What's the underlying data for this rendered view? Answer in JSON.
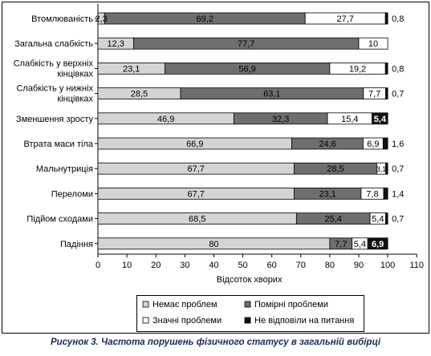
{
  "caption": "Рисунок 3. Частота порушень фізичного статусу в загальній вибірці",
  "colors": {
    "none": "#d4d4d4",
    "moderate": "#6e6e6e",
    "significant": "#ffffff",
    "no_answer": "#111111"
  },
  "chart_data": {
    "type": "bar",
    "orientation": "horizontal",
    "stacked": true,
    "xlabel": "Відсоток хворих",
    "xlim": [
      0,
      110
    ],
    "xticks": [
      0,
      10,
      20,
      30,
      40,
      50,
      60,
      70,
      80,
      90,
      100,
      110
    ],
    "grid": false,
    "legend_position": "bottom",
    "categories": [
      "Втомлюваність",
      "Загальна слабкість",
      "Слабкість у верхніх кінцівках",
      "Слабкість у нижніх кінцівках",
      "Зменшення зросту",
      "Втрата маси тіла",
      "Мальнутриція",
      "Переломи",
      "Підйом сходами",
      "Падіння"
    ],
    "category_lines": [
      [
        "Втомлюваність"
      ],
      [
        "Загальна слабкість"
      ],
      [
        "Слабкість у верхніх",
        "кінцівках"
      ],
      [
        "Слабкість у нижніх",
        "кінцівках"
      ],
      [
        "Зменшення зросту"
      ],
      [
        "Втрата маси тіла"
      ],
      [
        "Мальнутриція"
      ],
      [
        "Переломи"
      ],
      [
        "Підйом сходами"
      ],
      [
        "Падіння"
      ]
    ],
    "series": [
      {
        "name": "Немає проблем",
        "key": "none",
        "values": [
          2.3,
          12.3,
          23.1,
          28.5,
          46.9,
          66.9,
          67.7,
          67.7,
          68.5,
          80
        ],
        "labels": [
          "2,3",
          "12,3",
          "23,1",
          "28,5",
          "46,9",
          "66,9",
          "67,7",
          "67,7",
          "68,5",
          "80"
        ]
      },
      {
        "name": "Помірні проблеми",
        "key": "moderate",
        "values": [
          69.2,
          77.7,
          56.9,
          63.1,
          32.3,
          24.6,
          28.5,
          23.1,
          25.4,
          7.7
        ],
        "labels": [
          "69,2",
          "77,7",
          "56,9",
          "63,1",
          "32,3",
          "24,6",
          "28,5",
          "23,1",
          "25,4",
          "7,7"
        ]
      },
      {
        "name": "Значні проблеми",
        "key": "significant",
        "values": [
          27.7,
          10,
          19.2,
          7.7,
          15.4,
          6.9,
          3.1,
          7.8,
          5.4,
          5.4
        ],
        "labels": [
          "27,7",
          "10",
          "19,2",
          "7,7",
          "15,4",
          "6,9",
          "3,1",
          "7,8",
          "5,4",
          "5,4"
        ]
      },
      {
        "name": "Не відповіли на питання",
        "key": "no_answer",
        "values": [
          0.8,
          0,
          0.8,
          0.7,
          5.4,
          1.6,
          0.7,
          1.4,
          0.7,
          6.9
        ],
        "labels": [
          "0,8",
          "",
          "0,8",
          "0,7",
          "5,4",
          "1,6",
          "0,7",
          "1,4",
          "0,7",
          "6,9"
        ]
      }
    ]
  }
}
